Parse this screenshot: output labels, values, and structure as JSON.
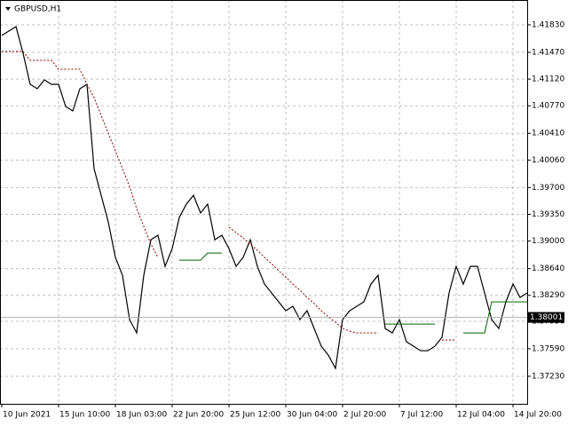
{
  "chart_data": {
    "type": "line",
    "title": "GBPUSD,H1",
    "categories": [
      "10 Jun 2021",
      null,
      null,
      null,
      null,
      null,
      null,
      null,
      "15 Jun 10:00",
      null,
      null,
      null,
      null,
      null,
      null,
      null,
      "18 Jun 03:00",
      null,
      null,
      null,
      null,
      null,
      null,
      null,
      "22 Jun 20:00",
      null,
      null,
      null,
      null,
      null,
      null,
      null,
      "25 Jun 12:00",
      null,
      null,
      null,
      null,
      null,
      null,
      null,
      "30 Jun 04:00",
      null,
      null,
      null,
      null,
      null,
      null,
      null,
      "2 Jul 20:00",
      null,
      null,
      null,
      null,
      null,
      null,
      null,
      "7 Jul 12:00",
      null,
      null,
      null,
      null,
      null,
      null,
      null,
      "12 Jul 04:00",
      null,
      null,
      null,
      null,
      null,
      null,
      null,
      "14 Jul 20:00",
      null,
      null
    ],
    "series": [
      {
        "color": "#000000",
        "values": [
          1.41691,
          1.41749,
          1.41807,
          1.41458,
          1.41051,
          1.40993,
          1.4111,
          1.41051,
          1.41051,
          1.40761,
          1.40703,
          1.40993,
          1.41051,
          1.39948,
          1.39599,
          1.3925,
          1.38786,
          1.38553,
          1.37972,
          1.37798,
          1.38553,
          1.39018,
          1.39076,
          1.38669,
          1.38902,
          1.39308,
          1.39483,
          1.39599,
          1.39367,
          1.39483,
          1.39018,
          1.39076,
          1.38902,
          1.38669,
          1.38786,
          1.39018,
          1.38669,
          1.38437,
          1.38321,
          1.38205,
          1.38088,
          1.38146,
          1.37972,
          1.38088,
          1.37856,
          1.37624,
          1.37507,
          1.37333,
          1.37972,
          1.38088,
          1.38146,
          1.38205,
          1.38437,
          1.38553,
          1.37856,
          1.37798,
          1.37972,
          1.37682,
          1.37624,
          1.37565,
          1.37565,
          1.37624,
          1.3774,
          1.38321,
          1.38669,
          1.38437,
          1.38669,
          1.38669,
          1.38321,
          1.37972,
          1.37856,
          1.38205,
          1.38437,
          1.38263,
          1.38321
        ]
      },
      {
        "color": "#8b0000",
        "dashed": true,
        "values": [
          1.41481,
          1.41481,
          1.41481,
          1.41481,
          1.41365,
          1.41365,
          1.41365,
          1.41365,
          1.41249,
          1.41249,
          1.41249,
          1.41249,
          1.41051,
          1.40877,
          1.40645,
          1.40412,
          1.4018,
          1.39948,
          1.39715,
          1.39425,
          1.39192,
          1.3896,
          1.38786,
          null,
          null,
          null,
          null,
          null,
          null,
          null,
          null,
          null,
          1.39181,
          1.39111,
          1.39041,
          1.3896,
          1.38879,
          1.38786,
          1.38704,
          1.38611,
          1.3853,
          1.38437,
          1.38356,
          1.38263,
          1.38181,
          1.38088,
          1.38007,
          1.37937,
          1.37856,
          1.37821,
          1.37798,
          1.37798,
          1.37798,
          1.37798,
          null,
          null,
          null,
          null,
          null,
          null,
          null,
          null,
          1.37705,
          1.37705,
          1.37705,
          null,
          null,
          null,
          null,
          null,
          null,
          null,
          null,
          null,
          null
        ]
      },
      {
        "color": "#006400",
        "dashed": false,
        "values": [
          null,
          null,
          null,
          null,
          null,
          null,
          null,
          null,
          null,
          null,
          null,
          null,
          null,
          null,
          null,
          null,
          null,
          null,
          null,
          null,
          null,
          null,
          null,
          null,
          null,
          1.38751,
          1.38751,
          1.38751,
          1.38751,
          1.38844,
          1.38844,
          1.38844,
          null,
          null,
          null,
          null,
          null,
          null,
          null,
          null,
          null,
          null,
          null,
          null,
          null,
          null,
          null,
          null,
          null,
          null,
          null,
          null,
          null,
          null,
          1.37914,
          1.37914,
          1.37914,
          1.37914,
          1.37914,
          1.37914,
          1.37914,
          1.37914,
          null,
          null,
          null,
          1.37798,
          1.37798,
          1.37798,
          1.37798,
          1.38205,
          1.38205,
          1.38205,
          1.38205,
          1.38205,
          1.38205
        ]
      }
    ],
    "last_price": 1.38001,
    "ylim": [
      1.3687,
      1.42155
    ],
    "yticks": [
      {
        "value": 1.4183,
        "label": "1.41830"
      },
      {
        "value": 1.4147,
        "label": "1.41470"
      },
      {
        "value": 1.4112,
        "label": "1.41120"
      },
      {
        "value": 1.4077,
        "label": "1.40770"
      },
      {
        "value": 1.4041,
        "label": "1.40410"
      },
      {
        "value": 1.4006,
        "label": "1.40060"
      },
      {
        "value": 1.397,
        "label": "1.39700"
      },
      {
        "value": 1.3935,
        "label": "1.39350"
      },
      {
        "value": 1.39,
        "label": "1.39000"
      },
      {
        "value": 1.3864,
        "label": "1.38640"
      },
      {
        "value": 1.3829,
        "label": "1.38290"
      },
      {
        "value": 1.3795,
        "label": "1.37950"
      },
      {
        "value": 1.3759,
        "label": "1.37590"
      },
      {
        "value": 1.3723,
        "label": "1.37230"
      }
    ],
    "grid": true
  }
}
